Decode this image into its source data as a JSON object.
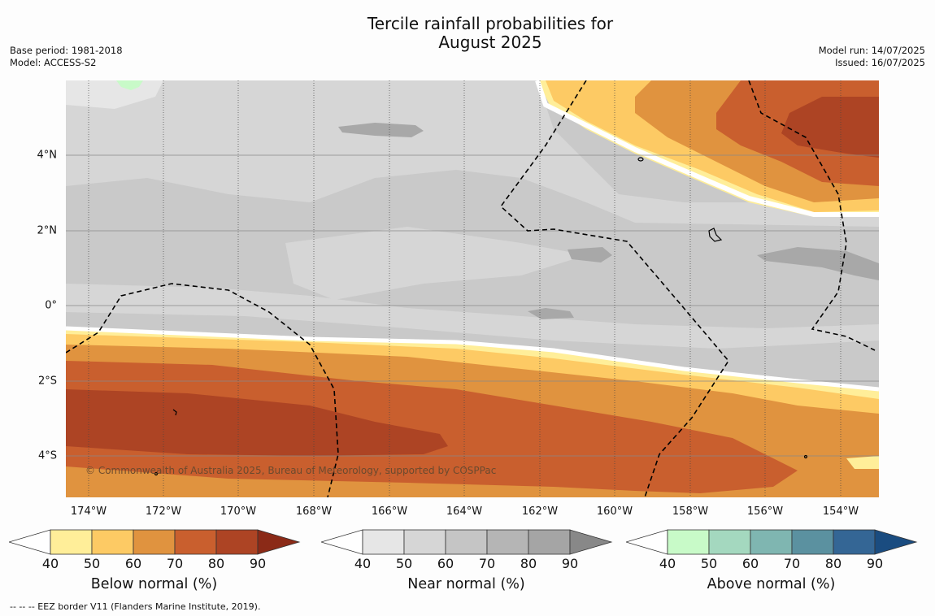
{
  "title_line1": "Tercile rainfall probabilities for",
  "title_line2": "August 2025",
  "meta_left": {
    "base_period": "Base period: 1981-2018",
    "model": "Model: ACCESS-S2"
  },
  "meta_right": {
    "model_run": "Model run: 14/07/2025",
    "issued": "Issued: 16/07/2025"
  },
  "copyright": "© Commonwealth of Australia 2025, Bureau of Meteorology, supported by COSPPac",
  "x_ticks": [
    "174°W",
    "172°W",
    "170°W",
    "168°W",
    "166°W",
    "164°W",
    "162°W",
    "160°W",
    "158°W",
    "156°W",
    "154°W"
  ],
  "y_ticks": [
    "4°N",
    "2°N",
    "0°",
    "2°S",
    "4°S"
  ],
  "colorbars": [
    {
      "label": "Below normal (%)",
      "ticks": [
        "40",
        "50",
        "60",
        "70",
        "80",
        "90"
      ],
      "colors": [
        "#ffee99",
        "#fdca64",
        "#e0933f",
        "#c95f2e",
        "#ad4424",
        "#8b2a17"
      ]
    },
    {
      "label": "Near normal (%)",
      "ticks": [
        "40",
        "50",
        "60",
        "70",
        "80",
        "90"
      ],
      "colors": [
        "#e6e6e6",
        "#d6d6d6",
        "#c5c5c5",
        "#b5b5b5",
        "#a5a5a5",
        "#888888"
      ]
    },
    {
      "label": "Above normal (%)",
      "ticks": [
        "40",
        "50",
        "60",
        "70",
        "80",
        "90"
      ],
      "colors": [
        "#c8fac8",
        "#a4d8bf",
        "#7fb6b1",
        "#5b91a0",
        "#346695",
        "#1a4c80"
      ]
    }
  ],
  "footnote": "--  --  -- EEZ border V11 (Flanders Marine Institute, 2019)."
}
